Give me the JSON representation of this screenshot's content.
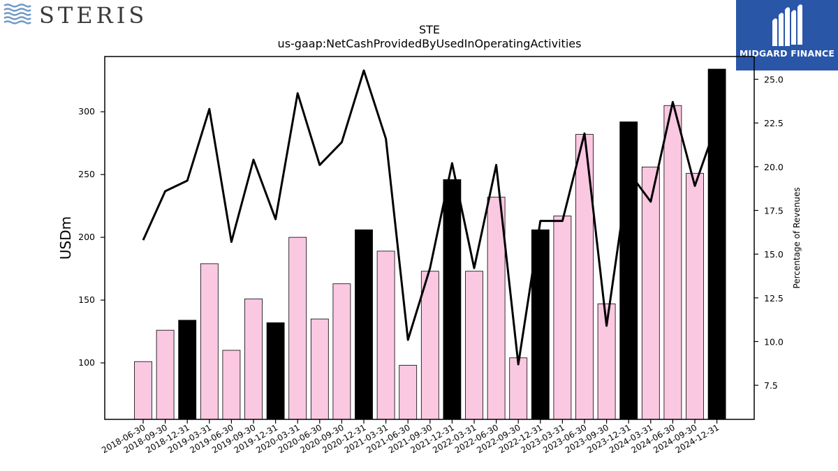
{
  "logos": {
    "left_text": "STERIS",
    "right_text": "MIDGARD FINANCE"
  },
  "colors": {
    "bar_highlight": "#000000",
    "bar_normal": "#fbc8e2",
    "line": "#000000",
    "logo_blue": "#2a56a8",
    "steris_waves": "#6f98c8",
    "steris_text": "#3a3a3a"
  },
  "chart_data": {
    "type": "bar",
    "title": "STE",
    "subtitle": "us-gaap:NetCashProvidedByUsedInOperatingActivities",
    "ylabel": "USDm",
    "y2label": "Percentage of Revenues",
    "ylim": [
      55,
      344
    ],
    "y2lim": [
      5.55,
      26.3
    ],
    "yticks": [
      100,
      150,
      200,
      250,
      300
    ],
    "y2ticks": [
      7.5,
      10.0,
      12.5,
      15.0,
      17.5,
      20.0,
      22.5,
      25.0
    ],
    "categories": [
      "2018-06-30",
      "2018-09-30",
      "2018-12-31",
      "2019-03-31",
      "2019-06-30",
      "2019-09-30",
      "2019-12-31",
      "2020-03-31",
      "2020-06-30",
      "2020-09-30",
      "2020-12-31",
      "2021-03-31",
      "2021-06-30",
      "2021-09-30",
      "2021-12-31",
      "2022-03-31",
      "2022-06-30",
      "2022-09-30",
      "2022-12-31",
      "2023-03-31",
      "2023-06-30",
      "2023-09-30",
      "2023-12-31",
      "2024-03-31",
      "2024-06-30",
      "2024-09-30",
      "2024-12-31"
    ],
    "series": [
      {
        "values": [
          101,
          126,
          134,
          179,
          110,
          151,
          132,
          200,
          135,
          163,
          206,
          189,
          98,
          173,
          246,
          173,
          232,
          104,
          206,
          217,
          282,
          147,
          292,
          256,
          305,
          251,
          334
        ],
        "highlight": [
          false,
          false,
          true,
          false,
          false,
          false,
          true,
          false,
          false,
          false,
          true,
          false,
          false,
          false,
          true,
          false,
          false,
          false,
          true,
          false,
          false,
          false,
          true,
          false,
          false,
          false,
          true
        ]
      },
      {
        "axis": "right",
        "values": [
          15.8,
          18.6,
          19.2,
          23.3,
          15.7,
          20.4,
          17.0,
          24.2,
          20.1,
          21.4,
          25.5,
          21.6,
          10.1,
          14.2,
          20.2,
          14.2,
          20.1,
          8.7,
          16.9,
          16.9,
          21.9,
          10.9,
          19.7,
          18.0,
          23.7,
          18.9,
          22.5
        ]
      }
    ],
    "grid": false,
    "legend": "none"
  }
}
